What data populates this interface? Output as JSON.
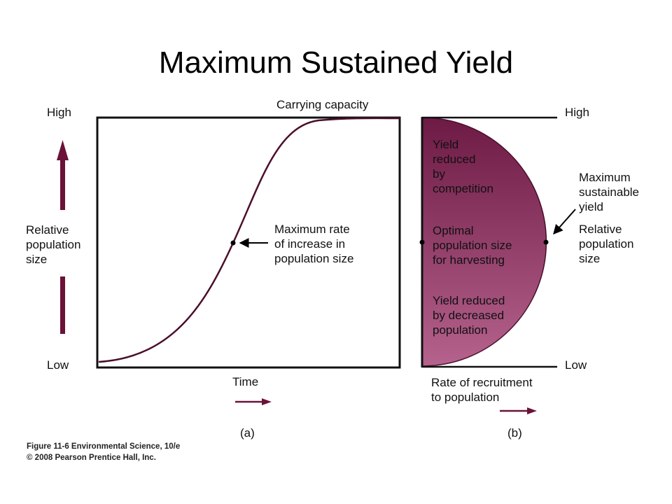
{
  "slide": {
    "title": "Maximum Sustained Yield"
  },
  "panel_a": {
    "carrying_capacity_label": "Carrying capacity",
    "y_high": "High",
    "y_low": "Low",
    "y_label_lines": [
      "Relative",
      "population",
      "size"
    ],
    "x_label": "Time",
    "annotation_lines": [
      "Maximum rate",
      "of increase in",
      "population size"
    ],
    "panel_letter": "(a)"
  },
  "panel_b": {
    "y_high": "High",
    "y_low": "Low",
    "region_top_lines": [
      "Yield",
      "reduced",
      "by",
      "competition"
    ],
    "region_mid_lines": [
      "Optimal",
      "population size",
      "for harvesting"
    ],
    "region_bottom_lines": [
      "Yield reduced",
      "by decreased",
      "population"
    ],
    "msy_label_lines": [
      "Maximum",
      "sustainable",
      "yield"
    ],
    "y_label_lines": [
      "Relative",
      "population",
      "size"
    ],
    "x_label_lines": [
      "Rate of recruitment",
      "to population"
    ],
    "panel_letter": "(b)"
  },
  "caption": {
    "line1": "Figure 11-6  Environmental Science, 10/e",
    "line2": "© 2008 Pearson Prentice Hall, Inc."
  },
  "colors": {
    "curve": "#4a0f2c",
    "arrow": "#6b1239",
    "fill_top": "#6d1a45",
    "fill_bottom": "#b5628d"
  }
}
